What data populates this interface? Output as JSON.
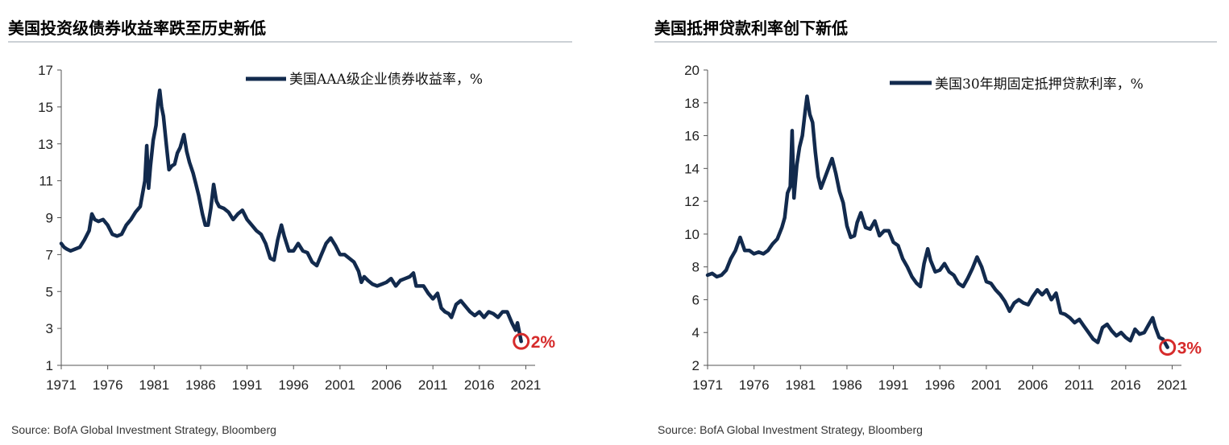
{
  "colors": {
    "series": "#122a4d",
    "highlight": "#d62b2b",
    "axis": "#555555",
    "rule": "#9aa3ad"
  },
  "chart_data": [
    {
      "type": "line",
      "title": "美国投资级债券收益率跌至历史新低",
      "legend": "美国AAA级企业债券收益率，%",
      "legend_position": "top-right",
      "source": "Source: BofA Global Investment Strategy, Bloomberg",
      "xlim": [
        1971,
        2022
      ],
      "ylim": [
        1,
        17
      ],
      "xticks": [
        1971,
        1976,
        1981,
        1986,
        1991,
        1996,
        2001,
        2006,
        2011,
        2016,
        2021
      ],
      "yticks": [
        1,
        3,
        5,
        7,
        9,
        11,
        13,
        15,
        17
      ],
      "end_label": "2%",
      "end_point": [
        2020.5,
        2.3
      ],
      "series": [
        {
          "name": "美国AAA级企业债券收益率，%",
          "x": [
            1971.0,
            1971.3,
            1971.6,
            1972.0,
            1972.5,
            1973.0,
            1973.5,
            1974.0,
            1974.3,
            1974.6,
            1975.0,
            1975.5,
            1976.0,
            1976.5,
            1977.0,
            1977.5,
            1978.0,
            1978.5,
            1979.0,
            1979.5,
            1980.0,
            1980.2,
            1980.4,
            1980.6,
            1980.9,
            1981.2,
            1981.4,
            1981.6,
            1981.8,
            1982.0,
            1982.3,
            1982.6,
            1982.9,
            1983.2,
            1983.5,
            1983.8,
            1984.2,
            1984.5,
            1984.8,
            1985.2,
            1985.5,
            1985.8,
            1986.2,
            1986.5,
            1986.8,
            1987.1,
            1987.4,
            1987.7,
            1988.0,
            1988.5,
            1989.0,
            1989.5,
            1990.0,
            1990.5,
            1991.0,
            1991.5,
            1992.0,
            1992.5,
            1993.0,
            1993.5,
            1993.9,
            1994.3,
            1994.7,
            1995.0,
            1995.5,
            1996.0,
            1996.5,
            1997.0,
            1997.5,
            1998.0,
            1998.5,
            1999.0,
            1999.5,
            2000.0,
            2000.5,
            2001.0,
            2001.5,
            2002.0,
            2002.5,
            2003.0,
            2003.3,
            2003.6,
            2004.0,
            2004.5,
            2005.0,
            2005.5,
            2006.0,
            2006.5,
            2007.0,
            2007.5,
            2008.0,
            2008.5,
            2008.9,
            2009.2,
            2009.6,
            2010.0,
            2010.5,
            2011.0,
            2011.5,
            2011.9,
            2012.3,
            2012.7,
            2013.0,
            2013.5,
            2014.0,
            2014.5,
            2015.0,
            2015.5,
            2016.0,
            2016.5,
            2017.0,
            2017.5,
            2018.0,
            2018.5,
            2019.0,
            2019.5,
            2019.9,
            2020.1,
            2020.3,
            2020.5
          ],
          "values": [
            7.6,
            7.4,
            7.3,
            7.2,
            7.3,
            7.4,
            7.8,
            8.3,
            9.2,
            8.9,
            8.8,
            8.9,
            8.6,
            8.1,
            8.0,
            8.1,
            8.6,
            8.9,
            9.3,
            9.6,
            11.0,
            12.9,
            10.6,
            11.8,
            13.2,
            14.0,
            15.2,
            15.9,
            15.0,
            14.5,
            13.0,
            11.6,
            11.8,
            11.9,
            12.5,
            12.8,
            13.5,
            12.6,
            12.0,
            11.4,
            10.8,
            10.2,
            9.2,
            8.6,
            8.6,
            9.5,
            10.8,
            9.9,
            9.6,
            9.5,
            9.3,
            8.9,
            9.2,
            9.4,
            8.9,
            8.6,
            8.3,
            8.1,
            7.6,
            6.8,
            6.7,
            7.8,
            8.6,
            8.0,
            7.2,
            7.2,
            7.6,
            7.2,
            7.1,
            6.6,
            6.4,
            7.0,
            7.6,
            7.9,
            7.5,
            7.0,
            7.0,
            6.8,
            6.6,
            6.1,
            5.5,
            5.8,
            5.6,
            5.4,
            5.3,
            5.4,
            5.5,
            5.7,
            5.3,
            5.6,
            5.7,
            5.8,
            6.0,
            5.3,
            5.3,
            5.3,
            4.9,
            4.6,
            4.9,
            4.1,
            3.9,
            3.8,
            3.6,
            4.3,
            4.5,
            4.2,
            3.9,
            3.7,
            3.9,
            3.6,
            3.9,
            3.8,
            3.6,
            3.9,
            3.9,
            3.3,
            2.9,
            3.3,
            2.8,
            2.3
          ]
        }
      ]
    },
    {
      "type": "line",
      "title": "美国抵押贷款利率创下新低",
      "legend": "美国30年期固定抵押贷款利率，%",
      "legend_position": "top-right",
      "source": "Source: BofA Global Investment Strategy, Bloomberg",
      "xlim": [
        1971,
        2022
      ],
      "ylim": [
        2,
        20
      ],
      "xticks": [
        1971,
        1976,
        1981,
        1986,
        1991,
        1996,
        2001,
        2006,
        2011,
        2016,
        2021
      ],
      "yticks": [
        2,
        4,
        6,
        8,
        10,
        12,
        14,
        16,
        18,
        20
      ],
      "end_label": "3%",
      "end_point": [
        2020.5,
        3.1
      ],
      "series": [
        {
          "name": "美国30年期固定抵押贷款利率，%",
          "x": [
            1971.0,
            1971.5,
            1972.0,
            1972.5,
            1973.0,
            1973.5,
            1974.0,
            1974.5,
            1975.0,
            1975.5,
            1976.0,
            1976.5,
            1977.0,
            1977.5,
            1978.0,
            1978.5,
            1979.0,
            1979.3,
            1979.6,
            1979.9,
            1980.1,
            1980.3,
            1980.6,
            1980.9,
            1981.2,
            1981.5,
            1981.7,
            1982.0,
            1982.3,
            1982.6,
            1982.9,
            1983.2,
            1983.6,
            1984.0,
            1984.4,
            1984.8,
            1985.2,
            1985.6,
            1986.0,
            1986.4,
            1986.8,
            1987.1,
            1987.5,
            1988.0,
            1988.5,
            1989.0,
            1989.5,
            1990.0,
            1990.5,
            1991.0,
            1991.5,
            1992.0,
            1992.5,
            1993.0,
            1993.5,
            1993.9,
            1994.3,
            1994.7,
            1995.0,
            1995.5,
            1996.0,
            1996.5,
            1997.0,
            1997.5,
            1998.0,
            1998.5,
            1999.0,
            1999.5,
            2000.0,
            2000.5,
            2001.0,
            2001.5,
            2002.0,
            2002.5,
            2003.0,
            2003.5,
            2004.0,
            2004.5,
            2005.0,
            2005.5,
            2006.0,
            2006.5,
            2007.0,
            2007.5,
            2008.0,
            2008.5,
            2009.0,
            2009.5,
            2010.0,
            2010.5,
            2011.0,
            2011.5,
            2012.0,
            2012.5,
            2013.0,
            2013.5,
            2014.0,
            2014.5,
            2015.0,
            2015.5,
            2016.0,
            2016.5,
            2017.0,
            2017.5,
            2018.0,
            2018.5,
            2018.9,
            2019.2,
            2019.6,
            2020.0,
            2020.3,
            2020.5
          ],
          "values": [
            7.5,
            7.6,
            7.4,
            7.5,
            7.8,
            8.5,
            9.0,
            9.8,
            9.0,
            9.0,
            8.8,
            8.9,
            8.8,
            9.0,
            9.4,
            9.7,
            10.4,
            11.0,
            12.5,
            12.9,
            16.3,
            12.2,
            14.2,
            15.3,
            16.0,
            17.5,
            18.4,
            17.3,
            16.8,
            15.0,
            13.5,
            12.8,
            13.4,
            14.0,
            14.6,
            13.7,
            12.6,
            11.9,
            10.5,
            9.8,
            9.9,
            10.7,
            11.3,
            10.4,
            10.3,
            10.8,
            9.9,
            10.2,
            10.2,
            9.5,
            9.3,
            8.5,
            8.0,
            7.4,
            7.0,
            6.8,
            8.2,
            9.1,
            8.4,
            7.7,
            7.8,
            8.2,
            7.7,
            7.5,
            7.0,
            6.8,
            7.3,
            7.9,
            8.6,
            8.0,
            7.1,
            7.0,
            6.6,
            6.3,
            5.9,
            5.3,
            5.8,
            6.0,
            5.8,
            5.7,
            6.2,
            6.6,
            6.3,
            6.6,
            6.0,
            6.4,
            5.2,
            5.1,
            4.9,
            4.6,
            4.8,
            4.4,
            4.0,
            3.6,
            3.4,
            4.3,
            4.5,
            4.1,
            3.8,
            4.0,
            3.7,
            3.5,
            4.2,
            3.9,
            4.0,
            4.5,
            4.9,
            4.3,
            3.7,
            3.6,
            3.3,
            3.1
          ]
        }
      ]
    }
  ]
}
